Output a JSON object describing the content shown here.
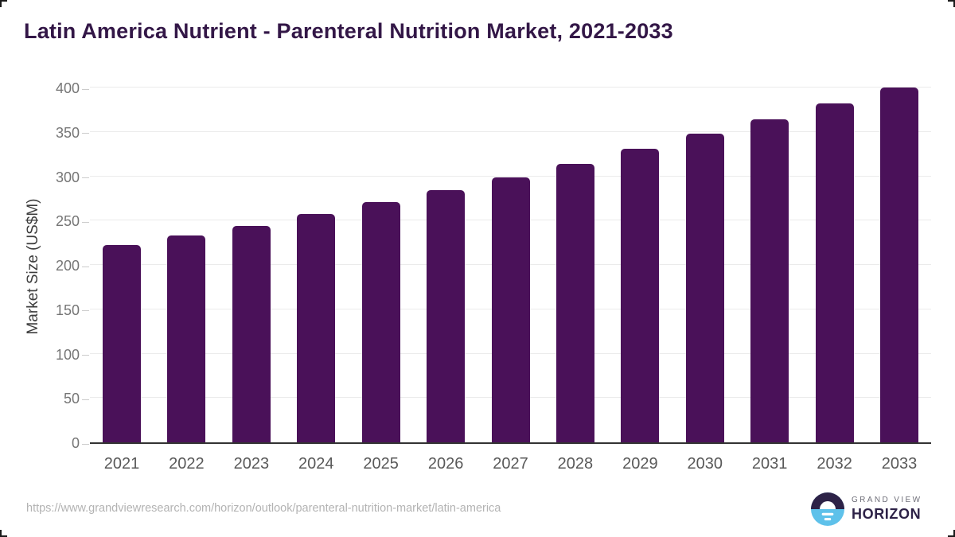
{
  "chart_data": {
    "type": "bar",
    "title": "Latin America Nutrient - Parenteral Nutrition Market, 2021-2033",
    "categories": [
      "2021",
      "2022",
      "2023",
      "2024",
      "2025",
      "2026",
      "2027",
      "2028",
      "2029",
      "2030",
      "2031",
      "2032",
      "2033"
    ],
    "values": [
      222,
      233,
      244,
      257,
      271,
      284,
      299,
      314,
      331,
      348,
      364,
      382,
      400
    ],
    "xlabel": "",
    "ylabel": "Market Size (US$M)",
    "ylim": [
      0,
      400
    ],
    "ytick_step": 50,
    "grid": true,
    "legend_position": "none",
    "bar_color": "#4a1159",
    "gridline_color": "#ebebeb",
    "axis_line_color": "#333333"
  },
  "footer": {
    "source_url": "https://www.grandviewresearch.com/horizon/outlook/parenteral-nutrition-market/latin-america"
  },
  "branding": {
    "logo_top": "GRAND VIEW",
    "logo_bottom": "HORIZON",
    "logo_dark_color": "#2d2247",
    "logo_blue_color": "#5ec1ea"
  }
}
